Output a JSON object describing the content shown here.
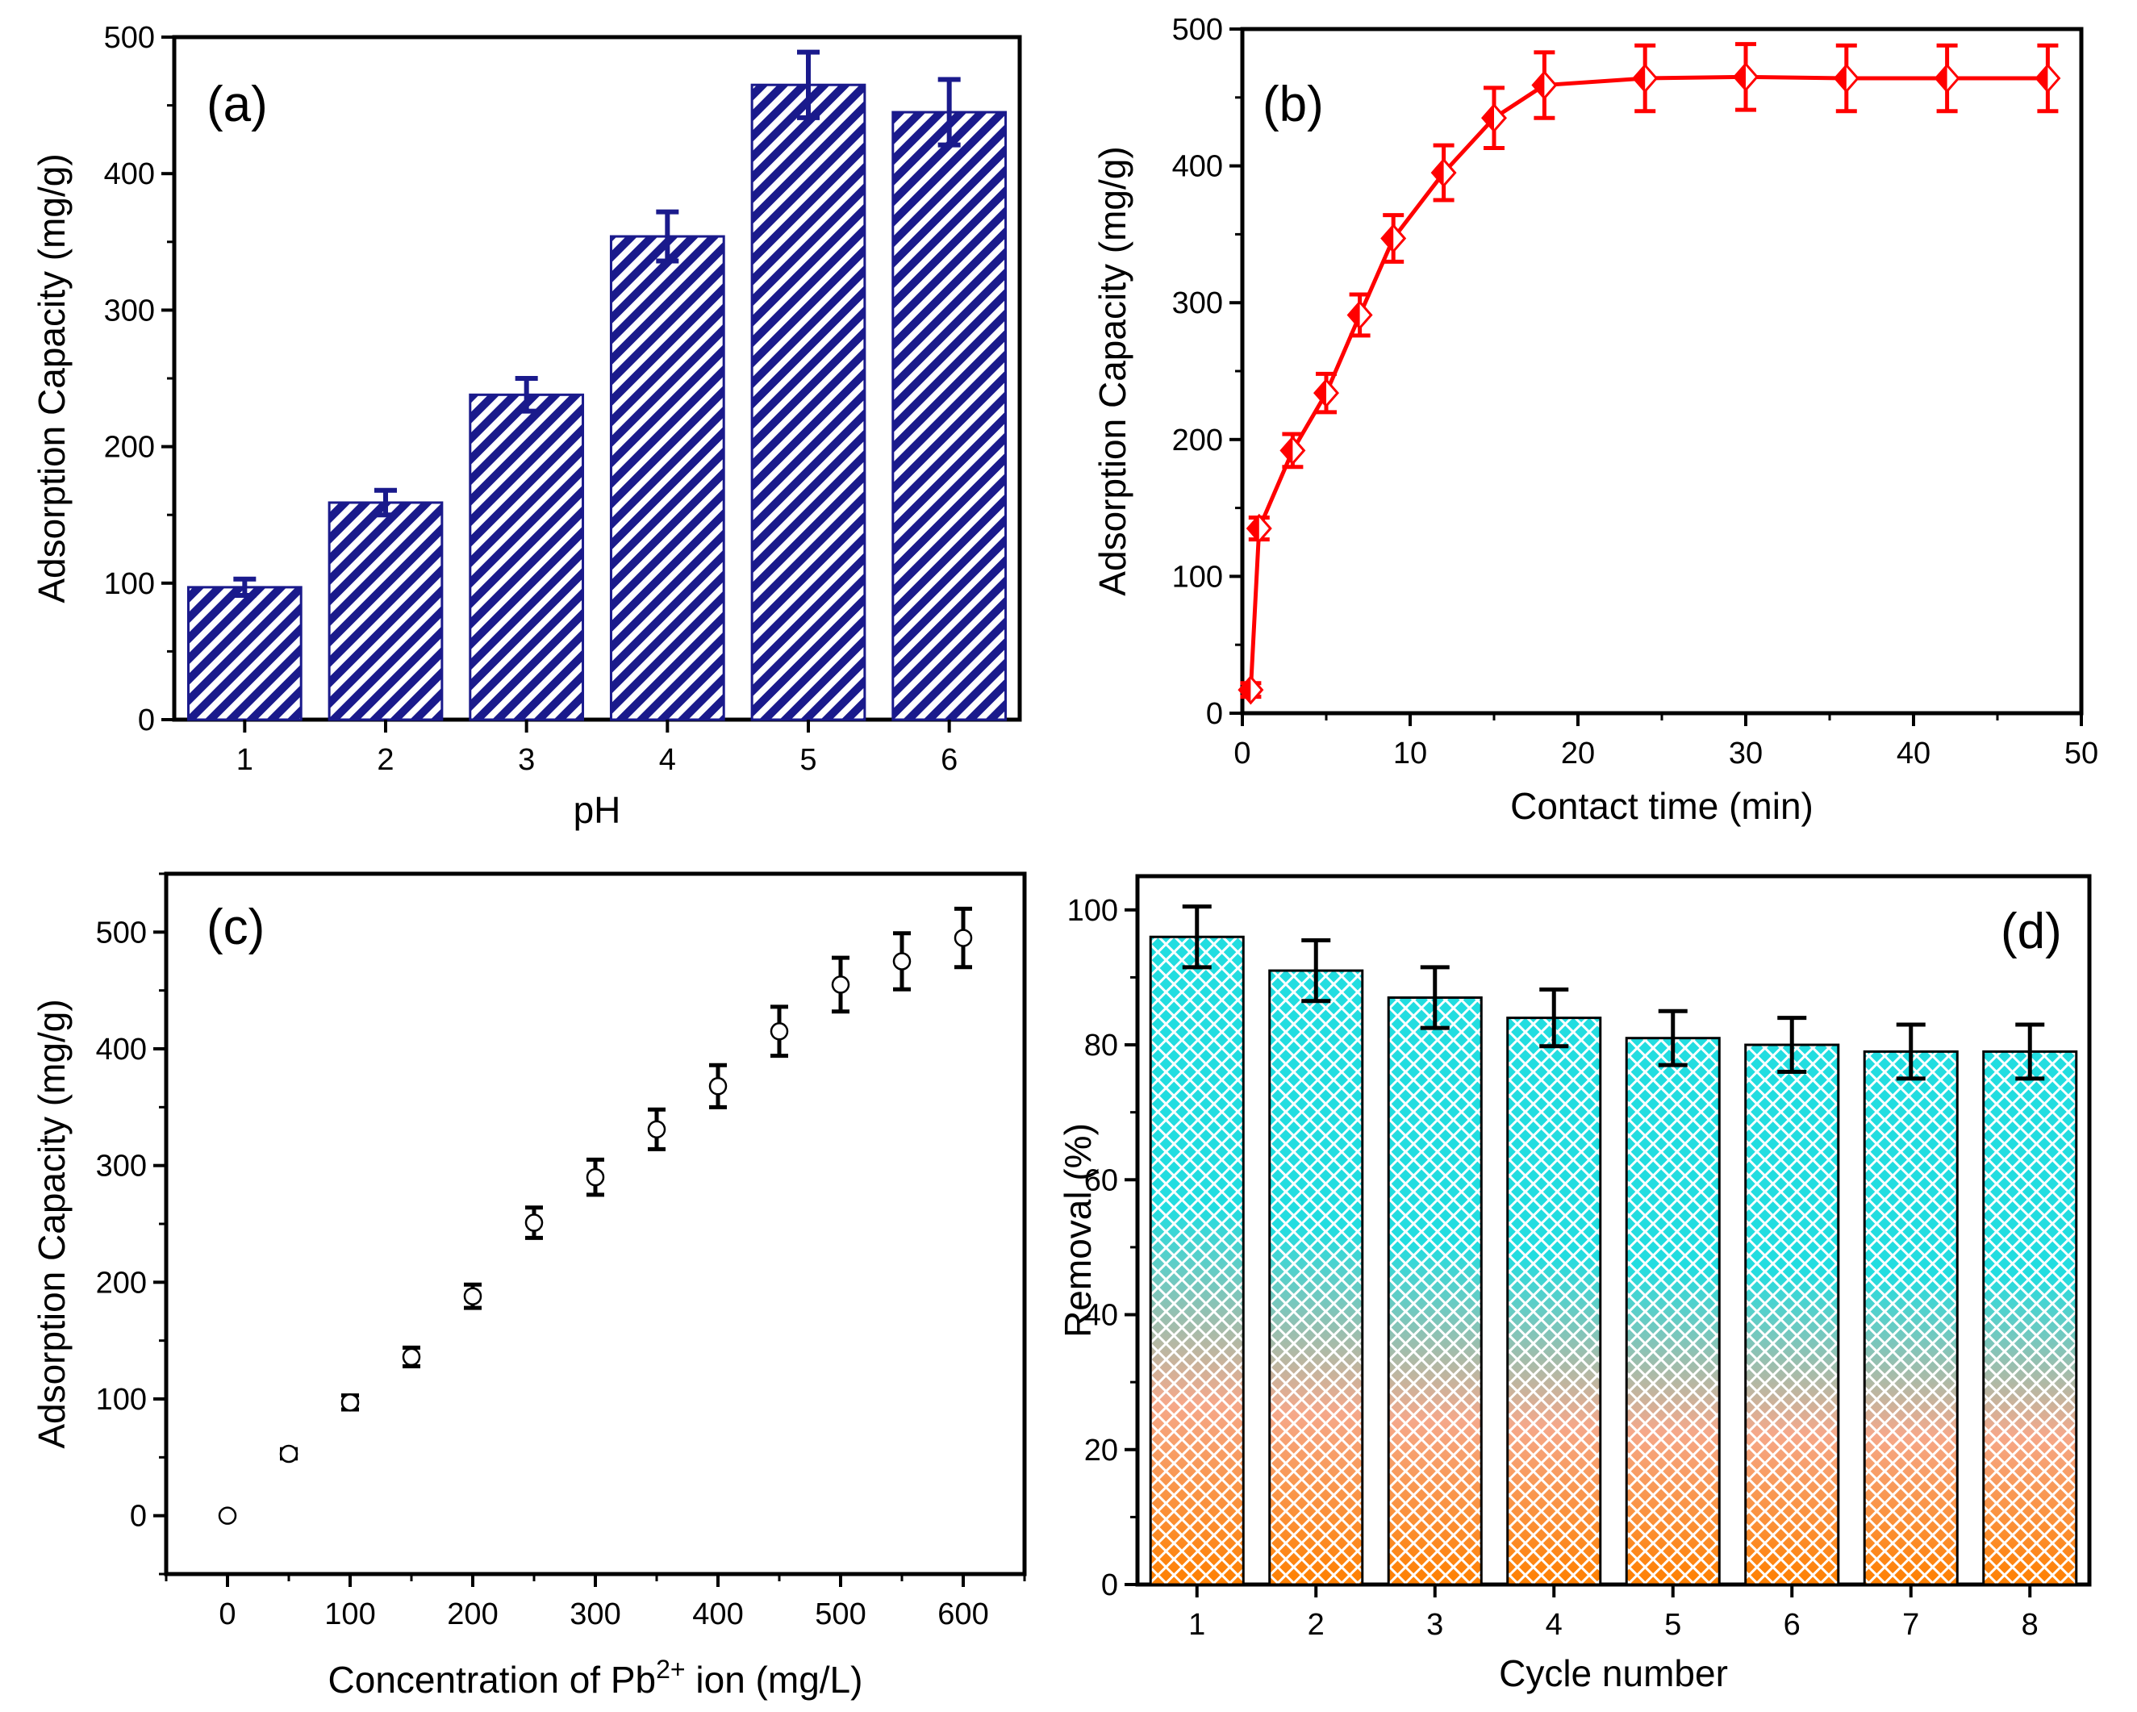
{
  "chart_data": [
    {
      "type": "bar",
      "panel_label": "(a)",
      "title": "",
      "xlabel": "pH",
      "ylabel": "Adsorption Capacity (mg/g)",
      "categories": [
        "1",
        "2",
        "3",
        "4",
        "5",
        "6"
      ],
      "values": [
        97,
        159,
        238,
        354,
        465,
        445
      ],
      "errors": [
        6,
        9,
        12,
        18,
        24,
        24
      ],
      "ylim": [
        0,
        500
      ],
      "yticks": [
        0,
        100,
        200,
        300,
        400,
        500
      ],
      "color": "#1a1a8c",
      "fill": "diagonal-hatch",
      "grid": false
    },
    {
      "type": "line",
      "panel_label": "(b)",
      "title": "",
      "xlabel": "Contact time (min)",
      "ylabel": "Adsorption Capacity (mg/g)",
      "x": [
        0.5,
        1,
        3,
        5,
        7,
        9,
        12,
        15,
        18,
        24,
        30,
        36,
        42,
        48
      ],
      "y": [
        17,
        135,
        192,
        234,
        291,
        347,
        395,
        435,
        459,
        464,
        465,
        464,
        464,
        464
      ],
      "errors": [
        5,
        8,
        12,
        14,
        15,
        17,
        20,
        22,
        24,
        24,
        24,
        24,
        24,
        24
      ],
      "xlim": [
        0,
        50
      ],
      "ylim": [
        0,
        500
      ],
      "xticks": [
        0,
        10,
        20,
        30,
        40,
        50
      ],
      "yticks": [
        0,
        100,
        200,
        300,
        400,
        500
      ],
      "color": "#ff0000",
      "marker": "half-filled diamond",
      "grid": false
    },
    {
      "type": "scatter",
      "panel_label": "(c)",
      "title": "",
      "xlabel_prefix": "Concentration of Pb",
      "xlabel_superscript": "2+",
      "xlabel_suffix": " ion (mg/L)",
      "ylabel": "Adsorption Capacity (mg/g)",
      "x": [
        0,
        50,
        100,
        150,
        200,
        250,
        300,
        350,
        400,
        450,
        500,
        550,
        600
      ],
      "y": [
        0,
        53,
        97,
        136,
        188,
        251,
        290,
        331,
        368,
        415,
        455,
        475,
        495
      ],
      "errors": [
        0,
        4,
        6,
        8,
        10,
        13,
        15,
        17,
        18,
        21,
        23,
        24,
        25
      ],
      "xlim": [
        -50,
        650
      ],
      "ylim": [
        -50,
        550
      ],
      "xticks": [
        0,
        100,
        200,
        300,
        400,
        500,
        600
      ],
      "yticks": [
        0,
        100,
        200,
        300,
        400,
        500
      ],
      "color": "#000000",
      "marker": "open circle",
      "grid": false
    },
    {
      "type": "bar",
      "panel_label": "(d)",
      "title": "",
      "xlabel": "Cycle number",
      "ylabel": "Removal (%)",
      "categories": [
        "1",
        "2",
        "3",
        "4",
        "5",
        "6",
        "7",
        "8"
      ],
      "values": [
        96,
        91,
        87,
        84,
        81,
        80,
        79,
        79
      ],
      "errors": [
        4.5,
        4.5,
        4.5,
        4.2,
        4.0,
        4.0,
        4.0,
        4.0
      ],
      "ylim": [
        0,
        105
      ],
      "yticks": [
        0,
        20,
        40,
        60,
        80,
        100
      ],
      "gradient_top": "#22dde0",
      "gradient_bottom": "#ff8000",
      "fill": "crosshatch gradient",
      "grid": false
    }
  ]
}
